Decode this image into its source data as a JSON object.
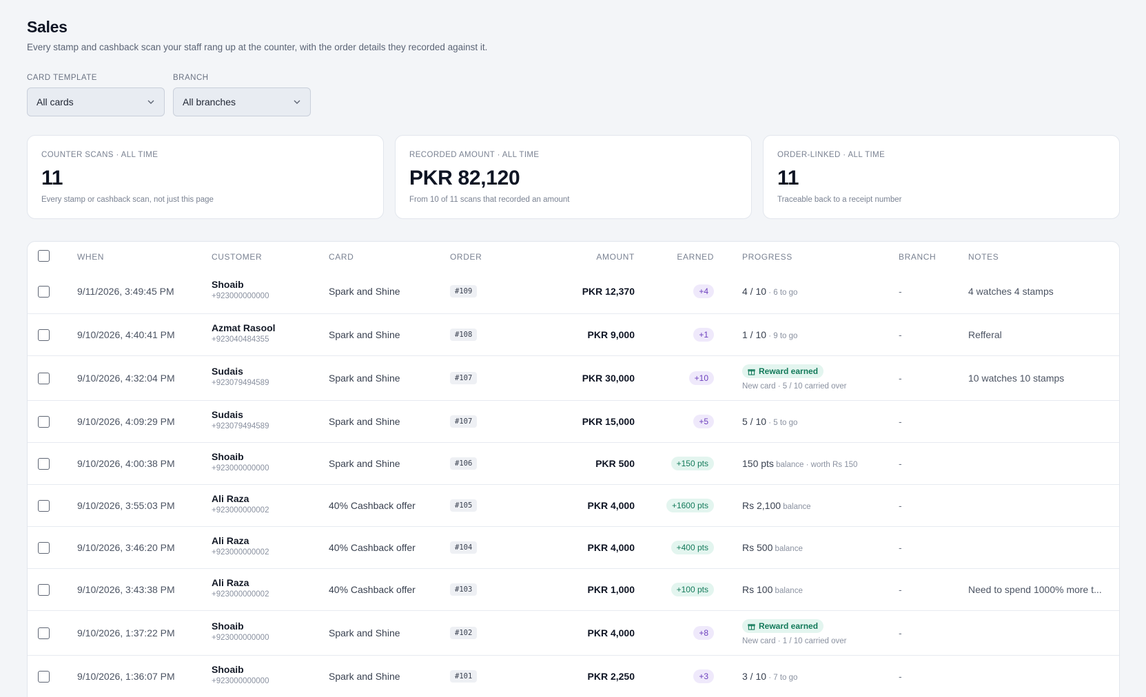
{
  "header": {
    "title": "Sales",
    "subtitle": "Every stamp and cashback scan your staff rang up at the counter, with the order details they recorded against it."
  },
  "filters": {
    "card_template": {
      "label": "CARD TEMPLATE",
      "value": "All cards"
    },
    "branch": {
      "label": "BRANCH",
      "value": "All branches"
    }
  },
  "stats": [
    {
      "label": "COUNTER SCANS · ALL TIME",
      "value": "11",
      "note": "Every stamp or cashback scan, not just this page"
    },
    {
      "label": "RECORDED AMOUNT · ALL TIME",
      "value": "PKR 82,120",
      "note": "From 10 of 11 scans that recorded an amount"
    },
    {
      "label": "ORDER-LINKED · ALL TIME",
      "value": "11",
      "note": "Traceable back to a receipt number"
    }
  ],
  "table": {
    "columns": {
      "when": "WHEN",
      "customer": "CUSTOMER",
      "card": "CARD",
      "order": "ORDER",
      "amount": "AMOUNT",
      "earned": "EARNED",
      "progress": "PROGRESS",
      "branch": "BRANCH",
      "notes": "NOTES"
    },
    "rows": [
      {
        "when": "9/11/2026, 3:49:45 PM",
        "name": "Shoaib",
        "phone": "+923000000000",
        "card": "Spark and Shine",
        "order": "#109",
        "amount": "PKR 12,370",
        "earned": "+4",
        "earned_kind": "stamp",
        "progress_main": "4 / 10",
        "progress_sub": " · 6 to go",
        "branch": "-",
        "notes": "4 watches 4 stamps"
      },
      {
        "when": "9/10/2026, 4:40:41 PM",
        "name": "Azmat Rasool",
        "phone": "+923040484355",
        "card": "Spark and Shine",
        "order": "#108",
        "amount": "PKR 9,000",
        "earned": "+1",
        "earned_kind": "stamp",
        "progress_main": "1 / 10",
        "progress_sub": " · 9 to go",
        "branch": "-",
        "notes": "Refferal"
      },
      {
        "when": "9/10/2026, 4:32:04 PM",
        "name": "Sudais",
        "phone": "+923079494589",
        "card": "Spark and Shine",
        "order": "#107",
        "amount": "PKR 30,000",
        "earned": "+10",
        "earned_kind": "stamp",
        "reward": "Reward earned",
        "reward_sub": "New card · 5 / 10 carried over",
        "branch": "-",
        "notes": "10 watches 10 stamps"
      },
      {
        "when": "9/10/2026, 4:09:29 PM",
        "name": "Sudais",
        "phone": "+923079494589",
        "card": "Spark and Shine",
        "order": "#107",
        "amount": "PKR 15,000",
        "earned": "+5",
        "earned_kind": "stamp",
        "progress_main": "5 / 10",
        "progress_sub": " · 5 to go",
        "branch": "-",
        "notes": ""
      },
      {
        "when": "9/10/2026, 4:00:38 PM",
        "name": "Shoaib",
        "phone": "+923000000000",
        "card": "Spark and Shine",
        "order": "#106",
        "amount": "PKR 500",
        "earned": "+150 pts",
        "earned_kind": "pts",
        "progress_main": "150 pts",
        "progress_sub": " balance · worth Rs 150",
        "branch": "-",
        "notes": ""
      },
      {
        "when": "9/10/2026, 3:55:03 PM",
        "name": "Ali Raza",
        "phone": "+923000000002",
        "card": "40% Cashback offer",
        "order": "#105",
        "amount": "PKR 4,000",
        "earned": "+1600 pts",
        "earned_kind": "pts",
        "progress_main": "Rs 2,100",
        "progress_sub": " balance",
        "branch": "-",
        "notes": ""
      },
      {
        "when": "9/10/2026, 3:46:20 PM",
        "name": "Ali Raza",
        "phone": "+923000000002",
        "card": "40% Cashback offer",
        "order": "#104",
        "amount": "PKR 4,000",
        "earned": "+400 pts",
        "earned_kind": "pts",
        "progress_main": "Rs 500",
        "progress_sub": " balance",
        "branch": "-",
        "notes": ""
      },
      {
        "when": "9/10/2026, 3:43:38 PM",
        "name": "Ali Raza",
        "phone": "+923000000002",
        "card": "40% Cashback offer",
        "order": "#103",
        "amount": "PKR 1,000",
        "earned": "+100 pts",
        "earned_kind": "pts",
        "progress_main": "Rs 100",
        "progress_sub": " balance",
        "branch": "-",
        "notes": "Need to spend 1000% more t..."
      },
      {
        "when": "9/10/2026, 1:37:22 PM",
        "name": "Shoaib",
        "phone": "+923000000000",
        "card": "Spark and Shine",
        "order": "#102",
        "amount": "PKR 4,000",
        "earned": "+8",
        "earned_kind": "stamp",
        "reward": "Reward earned",
        "reward_sub": "New card · 1 / 10 carried over",
        "branch": "-",
        "notes": ""
      },
      {
        "when": "9/10/2026, 1:36:07 PM",
        "name": "Shoaib",
        "phone": "+923000000000",
        "card": "Spark and Shine",
        "order": "#101",
        "amount": "PKR 2,250",
        "earned": "+3",
        "earned_kind": "stamp",
        "progress_main": "3 / 10",
        "progress_sub": " · 7 to go",
        "branch": "-",
        "notes": ""
      }
    ]
  },
  "colors": {
    "background": "#f3f5f8",
    "stamp_badge": "#6c3fbd",
    "points_badge": "#137a5a"
  }
}
